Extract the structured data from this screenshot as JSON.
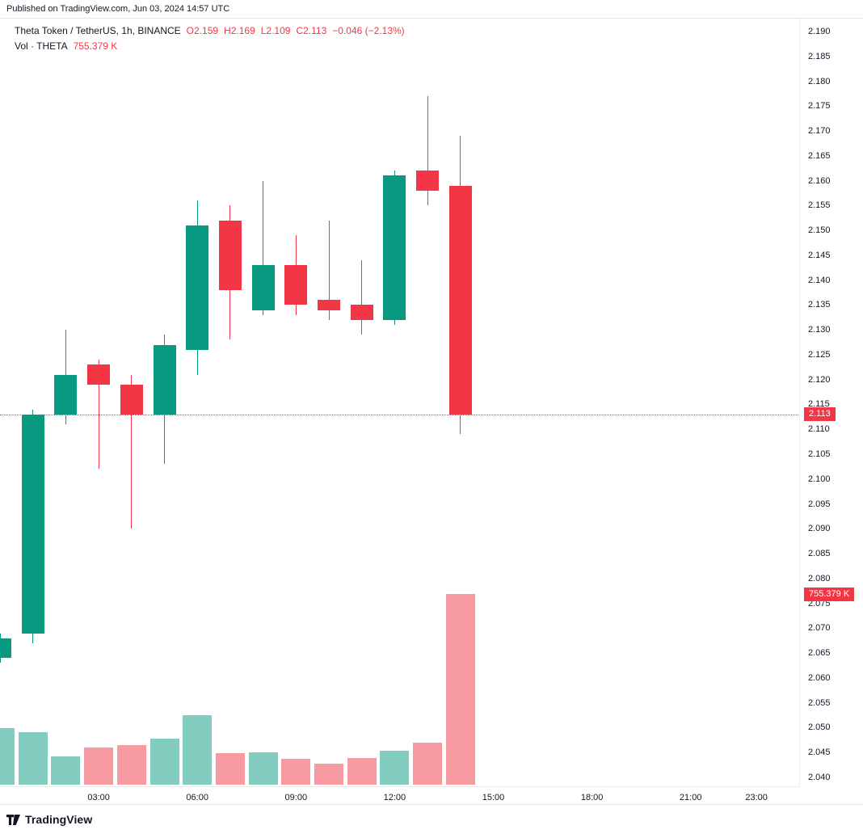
{
  "header": {
    "published": "Published on TradingView.com, Jun 03, 2024 14:57 UTC"
  },
  "legend": {
    "symbol": "Theta Token / TetherUS, 1h, BINANCE",
    "ohlc": [
      "O2.159",
      "H2.169",
      "L2.109",
      "C2.113",
      "−0.046 (−2.13%)"
    ],
    "vol_label": "Vol · THETA",
    "vol_value": "755.379 K"
  },
  "axes": {
    "price_labels": [
      "2.190",
      "2.185",
      "2.180",
      "2.175",
      "2.170",
      "2.165",
      "2.160",
      "2.155",
      "2.150",
      "2.145",
      "2.140",
      "2.135",
      "2.130",
      "2.125",
      "2.120",
      "2.115",
      "2.110",
      "2.105",
      "2.100",
      "2.095",
      "2.090",
      "2.085",
      "2.080",
      "2.075",
      "2.070",
      "2.065",
      "2.060",
      "2.055",
      "2.050",
      "2.045",
      "2.040"
    ],
    "time_labels": [
      {
        "text": "03:00",
        "hour": 3
      },
      {
        "text": "06:00",
        "hour": 6
      },
      {
        "text": "09:00",
        "hour": 9
      },
      {
        "text": "12:00",
        "hour": 12
      },
      {
        "text": "15:00",
        "hour": 15
      },
      {
        "text": "18:00",
        "hour": 18
      },
      {
        "text": "21:00",
        "hour": 21
      },
      {
        "text": "23:00",
        "hour": 23
      }
    ]
  },
  "badges": {
    "last_price": "2.113",
    "volume": "755.379 K"
  },
  "footer": {
    "brand": "TradingView"
  },
  "chart_data": {
    "type": "candlestick",
    "title": "Theta Token / TetherUS, 1h, BINANCE",
    "interval": "1h",
    "exchange": "BINANCE",
    "volume_overlay": true,
    "last_price": 2.113,
    "change": -0.046,
    "change_pct": -2.13,
    "last_volume_display": "755.379 K",
    "price_axis_range": {
      "min": 2.04,
      "max": 2.19,
      "step": 0.005
    },
    "x_axis": {
      "unit": "hour",
      "visible_range_hours": [
        0,
        24
      ]
    },
    "candles": [
      {
        "t": 0,
        "o": 2.064,
        "h": 2.069,
        "l": 2.063,
        "c": 2.068
      },
      {
        "t": 1,
        "o": 2.069,
        "h": 2.114,
        "l": 2.067,
        "c": 2.113
      },
      {
        "t": 2,
        "o": 2.113,
        "h": 2.13,
        "l": 2.111,
        "c": 2.121
      },
      {
        "t": 3,
        "o": 2.123,
        "h": 2.124,
        "l": 2.102,
        "c": 2.119
      },
      {
        "t": 4,
        "o": 2.119,
        "h": 2.121,
        "l": 2.09,
        "c": 2.113
      },
      {
        "t": 5,
        "o": 2.113,
        "h": 2.129,
        "l": 2.103,
        "c": 2.127
      },
      {
        "t": 6,
        "o": 2.126,
        "h": 2.156,
        "l": 2.121,
        "c": 2.151
      },
      {
        "t": 7,
        "o": 2.152,
        "h": 2.155,
        "l": 2.128,
        "c": 2.138
      },
      {
        "t": 8,
        "o": 2.134,
        "h": 2.16,
        "l": 2.133,
        "c": 2.143
      },
      {
        "t": 9,
        "o": 2.143,
        "h": 2.149,
        "l": 2.133,
        "c": 2.135
      },
      {
        "t": 10,
        "o": 2.136,
        "h": 2.152,
        "l": 2.132,
        "c": 2.134
      },
      {
        "t": 11,
        "o": 2.135,
        "h": 2.144,
        "l": 2.129,
        "c": 2.132
      },
      {
        "t": 12,
        "o": 2.132,
        "h": 2.162,
        "l": 2.131,
        "c": 2.161
      },
      {
        "t": 13,
        "o": 2.162,
        "h": 2.177,
        "l": 2.155,
        "c": 2.158
      },
      {
        "t": 14,
        "o": 2.159,
        "h": 2.169,
        "l": 2.109,
        "c": 2.113
      }
    ],
    "volumes_k": [
      224,
      208,
      112,
      147,
      157,
      182,
      275,
      125,
      128,
      102,
      83,
      106,
      134,
      166,
      755.379
    ],
    "colors": {
      "up": "#089981",
      "down": "#F23645",
      "vol_up": "rgba(8,153,129,0.5)",
      "vol_down": "rgba(242,54,69,0.5)",
      "last_price_line": "#F23645",
      "badge_bg": "#F23645"
    }
  }
}
